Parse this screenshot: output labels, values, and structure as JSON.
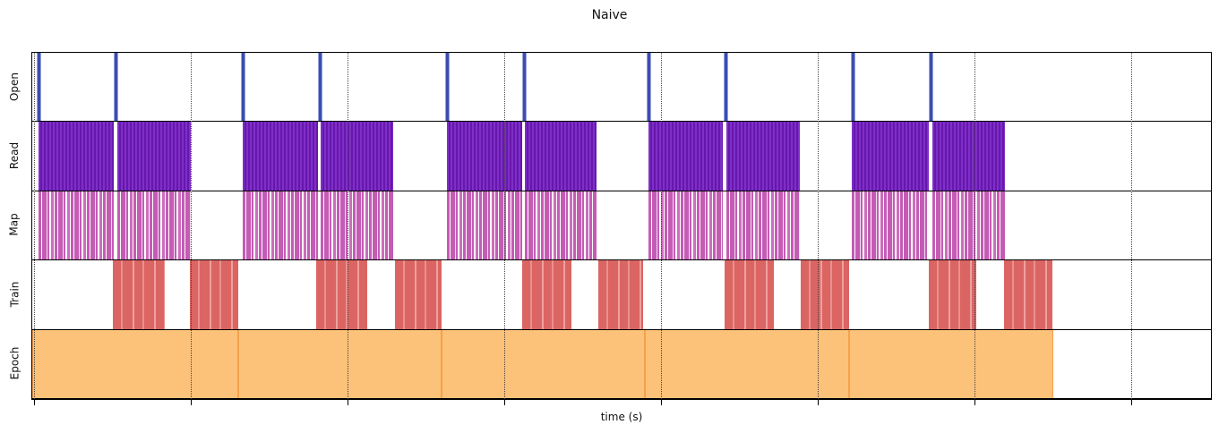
{
  "title": "Naive",
  "xlabel": "time (s)",
  "colors": {
    "open_bar": "#3b4db0",
    "read_bar": "#6716ad",
    "map_bar": "#c45cb5",
    "train_bar": "#db6563",
    "epoch_bar": "#fcc279",
    "epoch_edge": "#f5a14b",
    "axis": "#000000",
    "grid": "#444444"
  },
  "chart_data": {
    "type": "timeline",
    "title": "Naive",
    "xlabel": "time (s)",
    "ylabel": "",
    "x_axis": {
      "range_units": [
        0,
        1316
      ],
      "tick_positions_units": [
        2,
        177,
        352,
        527,
        702,
        877,
        1052,
        1227
      ],
      "tick_labels": [],
      "grid": "dotted-vertical"
    },
    "rows": [
      {
        "label": "Open",
        "style": "open",
        "intervals": [
          [
            5,
            10
          ],
          [
            91,
            96
          ],
          [
            233,
            238
          ],
          [
            319,
            324
          ],
          [
            461,
            466
          ],
          [
            547,
            552
          ],
          [
            686,
            691
          ],
          [
            772,
            777
          ],
          [
            914,
            919
          ],
          [
            1001,
            1006
          ]
        ]
      },
      {
        "label": "Read",
        "style": "read",
        "intervals": [
          [
            7,
            91
          ],
          [
            95,
            177
          ],
          [
            235,
            319
          ],
          [
            322,
            403
          ],
          [
            463,
            547
          ],
          [
            550,
            630
          ],
          [
            688,
            771
          ],
          [
            775,
            857
          ],
          [
            915,
            1001
          ],
          [
            1005,
            1086
          ]
        ]
      },
      {
        "label": "Map",
        "style": "map",
        "intervals": [
          [
            7,
            91
          ],
          [
            95,
            177
          ],
          [
            235,
            319
          ],
          [
            322,
            403
          ],
          [
            463,
            547
          ],
          [
            550,
            630
          ],
          [
            688,
            771
          ],
          [
            775,
            857
          ],
          [
            915,
            1001
          ],
          [
            1005,
            1086
          ]
        ]
      },
      {
        "label": "Train",
        "style": "train",
        "intervals": [
          [
            90,
            148
          ],
          [
            176,
            230
          ],
          [
            317,
            374
          ],
          [
            405,
            457
          ],
          [
            547,
            602
          ],
          [
            632,
            682
          ],
          [
            773,
            828
          ],
          [
            858,
            912
          ],
          [
            1001,
            1054
          ],
          [
            1085,
            1139
          ]
        ]
      },
      {
        "label": "Epoch",
        "style": "epoch",
        "intervals": [
          [
            0,
            230
          ],
          [
            230,
            457
          ],
          [
            457,
            684
          ],
          [
            684,
            912
          ],
          [
            912,
            1140
          ]
        ]
      }
    ]
  }
}
